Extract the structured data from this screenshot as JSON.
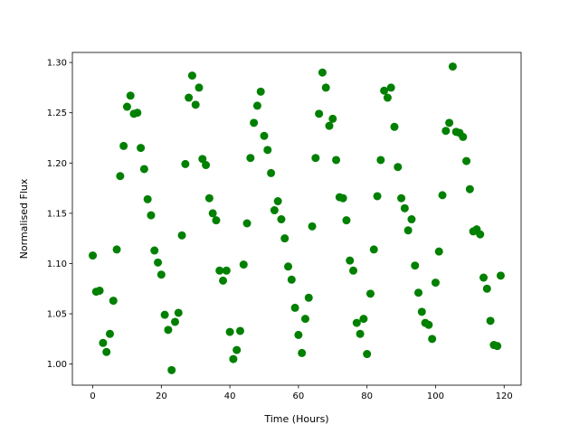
{
  "chart_data": {
    "type": "scatter",
    "x_label": "Time (Hours)",
    "y_label": "Normalised Flux",
    "color": "#008000",
    "x": [
      0,
      1,
      2,
      3,
      4,
      5,
      6,
      7,
      8,
      9,
      10,
      11,
      12,
      13,
      14,
      15,
      16,
      17,
      18,
      19,
      20,
      21,
      22,
      23,
      24,
      25,
      26,
      27,
      28,
      29,
      30,
      31,
      32,
      33,
      34,
      35,
      36,
      37,
      38,
      39,
      40,
      41,
      42,
      43,
      44,
      45,
      46,
      47,
      48,
      49,
      50,
      51,
      52,
      53,
      54,
      55,
      56,
      57,
      58,
      59,
      60,
      61,
      62,
      63,
      64,
      65,
      66,
      67,
      68,
      69,
      70,
      71,
      72,
      73,
      74,
      75,
      76,
      77,
      78,
      79,
      80,
      81,
      82,
      83,
      84,
      85,
      86,
      87,
      88,
      89,
      90,
      91,
      92,
      93,
      94,
      95,
      96,
      97,
      98,
      99,
      100,
      101,
      102,
      103,
      104,
      105,
      106,
      107,
      108,
      109,
      110,
      111,
      112,
      113,
      114,
      115,
      116,
      117,
      118,
      119
    ],
    "values": [
      1.108,
      1.072,
      1.073,
      1.021,
      1.012,
      1.03,
      1.063,
      1.114,
      1.187,
      1.217,
      1.256,
      1.267,
      1.249,
      1.25,
      1.215,
      1.194,
      1.164,
      1.148,
      1.113,
      1.101,
      1.089,
      1.049,
      1.034,
      0.994,
      1.042,
      1.051,
      1.128,
      1.199,
      1.265,
      1.287,
      1.258,
      1.275,
      1.204,
      1.198,
      1.165,
      1.15,
      1.143,
      1.093,
      1.083,
      1.093,
      1.032,
      1.005,
      1.014,
      1.033,
      1.099,
      1.14,
      1.205,
      1.24,
      1.257,
      1.271,
      1.227,
      1.213,
      1.19,
      1.153,
      1.162,
      1.144,
      1.125,
      1.097,
      1.084,
      1.056,
      1.029,
      1.011,
      1.045,
      1.066,
      1.137,
      1.205,
      1.249,
      1.29,
      1.275,
      1.237,
      1.244,
      1.203,
      1.166,
      1.165,
      1.143,
      1.103,
      1.093,
      1.041,
      1.03,
      1.045,
      1.01,
      1.07,
      1.114,
      1.167,
      1.203,
      1.272,
      1.265,
      1.275,
      1.236,
      1.196,
      1.165,
      1.155,
      1.133,
      1.144,
      1.098,
      1.071,
      1.052,
      1.041,
      1.039,
      1.025,
      1.081,
      1.112,
      1.168,
      1.232,
      1.24,
      1.296,
      1.231,
      1.23,
      1.226,
      1.202,
      1.174,
      1.132,
      1.134,
      1.129,
      1.086,
      1.075,
      1.043,
      1.019,
      1.018,
      1.088
    ],
    "xlim": [
      -5.95,
      124.95
    ],
    "xticks": [
      0,
      20,
      40,
      60,
      80,
      100,
      120
    ],
    "ylim": [
      0.979,
      1.31
    ],
    "yticks": [
      {
        "value": 1.0,
        "label": "1.00"
      },
      1.05,
      {
        "value": 1.1,
        "label": "1.10"
      },
      1.15,
      {
        "value": 1.2,
        "label": "1.20"
      },
      1.25,
      {
        "value": 1.3,
        "label": "1.30"
      }
    ],
    "grid": false
  }
}
